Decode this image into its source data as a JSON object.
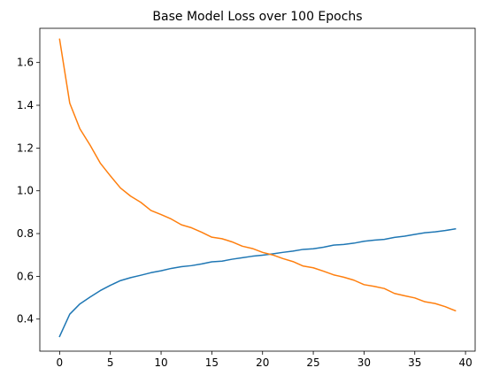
{
  "chart_data": {
    "type": "line",
    "title": "Base Model Loss over 100 Epochs",
    "xlabel": "",
    "ylabel": "",
    "xlim": [
      -1.95,
      40.95
    ],
    "ylim": [
      0.25,
      1.76
    ],
    "xticks": [
      0,
      5,
      10,
      15,
      20,
      25,
      30,
      35,
      40
    ],
    "yticks": [
      0.4,
      0.6,
      0.8,
      1.0,
      1.2,
      1.4,
      1.6
    ],
    "ytick_labels": [
      "0.4",
      "0.6",
      "0.8",
      "1.0",
      "1.2",
      "1.4",
      "1.6"
    ],
    "grid": false,
    "legend": "none",
    "x": [
      0,
      1,
      2,
      3,
      4,
      5,
      6,
      7,
      8,
      9,
      10,
      11,
      12,
      13,
      14,
      15,
      16,
      17,
      18,
      19,
      20,
      21,
      22,
      23,
      24,
      25,
      26,
      27,
      28,
      29,
      30,
      31,
      32,
      33,
      34,
      35,
      36,
      37,
      38,
      39
    ],
    "series": [
      {
        "color": "#1f77b4",
        "values": [
          0.319,
          0.423,
          0.471,
          0.503,
          0.533,
          0.558,
          0.58,
          0.594,
          0.605,
          0.617,
          0.626,
          0.637,
          0.645,
          0.65,
          0.658,
          0.668,
          0.671,
          0.68,
          0.687,
          0.694,
          0.699,
          0.705,
          0.712,
          0.718,
          0.726,
          0.729,
          0.736,
          0.746,
          0.749,
          0.755,
          0.764,
          0.769,
          0.773,
          0.782,
          0.788,
          0.796,
          0.804,
          0.808,
          0.814,
          0.822
        ]
      },
      {
        "color": "#ff7f0e",
        "values": [
          1.709,
          1.41,
          1.29,
          1.214,
          1.13,
          1.07,
          1.013,
          0.975,
          0.946,
          0.908,
          0.889,
          0.868,
          0.841,
          0.827,
          0.806,
          0.783,
          0.776,
          0.761,
          0.741,
          0.73,
          0.712,
          0.7,
          0.683,
          0.669,
          0.648,
          0.64,
          0.624,
          0.607,
          0.596,
          0.582,
          0.561,
          0.553,
          0.543,
          0.52,
          0.509,
          0.499,
          0.481,
          0.473,
          0.458,
          0.439
        ]
      }
    ]
  }
}
